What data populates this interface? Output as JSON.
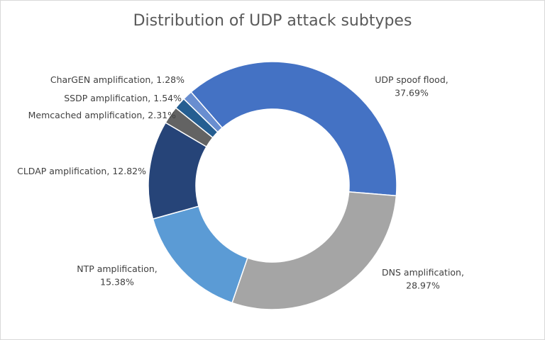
{
  "chart_data": {
    "type": "donut",
    "title": "Distribution of UDP attack subtypes",
    "categories": [
      "UDP spoof flood",
      "DNS amplification",
      "NTP amplification",
      "CLDAP amplification",
      "Memcached amplification",
      "SSDP amplification",
      "CharGEN amplification"
    ],
    "values": [
      37.69,
      28.97,
      15.38,
      12.82,
      2.31,
      1.54,
      1.28
    ],
    "value_labels": [
      "37.69%",
      "28.97%",
      "15.38%",
      "12.82%",
      "2.31%",
      "1.54%",
      "1.28%"
    ],
    "label_separator": ",",
    "colors": [
      "#4472c4",
      "#a5a5a5",
      "#5b9bd5",
      "#264478",
      "#636363",
      "#255e91",
      "#698ed0"
    ]
  }
}
